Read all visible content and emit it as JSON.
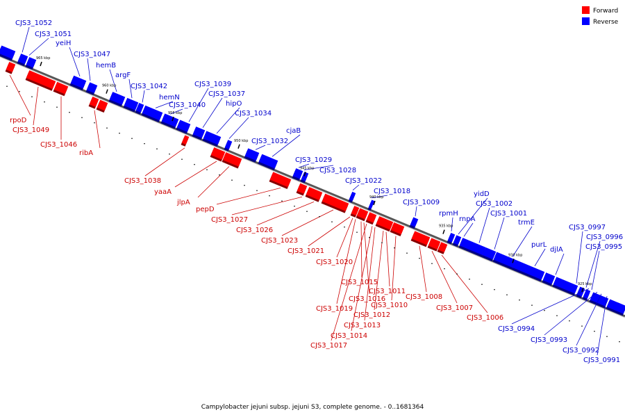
{
  "caption": "Campylobacter jejuni subsp. jejuni S3, complete genome. - 0..1681364",
  "legend": [
    {
      "label": "Forward",
      "color": "#ff0000"
    },
    {
      "label": "Reverse",
      "color": "#0000ff"
    }
  ],
  "colors": {
    "forward": "#ff0000",
    "forward_line": "#cc0000",
    "reverse": "#0000ff",
    "reverse_line": "#0000cc",
    "axis": "#888888"
  },
  "ticks": [
    "965 kbp",
    "960 kbp",
    "955 kbp",
    "950 kbp",
    "945 kbp",
    "940 kbp",
    "935 kbp",
    "930 kbp",
    "925 kbp"
  ],
  "reverse_genes": [
    "CJS3_1052",
    "CJS3_1051",
    "yeiH",
    "CJS3_1047",
    "hemB",
    "argF",
    "CJS3_1042",
    "hemN",
    "CJS3_1040",
    "CJS3_1039",
    "CJS3_1037",
    "hipO",
    "CJS3_1034",
    "cjaB",
    "CJS3_1032",
    "CJS3_1029",
    "CJS3_1028",
    "CJS3_1022",
    "CJS3_1018",
    "CJS3_1009",
    "rpmH",
    "yidD",
    "rnpA",
    "CJS3_1002",
    "CJS3_1001",
    "trmE",
    "purL",
    "djlA",
    "CJS3_0997",
    "CJS3_0996",
    "CJS3_0995",
    "CJS3_0994",
    "CJS3_0993",
    "CJS3_0992",
    "CJS3_0991"
  ],
  "forward_genes": [
    "rpoD",
    "CJS3_1049",
    "CJS3_1046",
    "ribA",
    "CJS3_1038",
    "yaaA",
    "jlpA",
    "pepD",
    "CJS3_1027",
    "CJS3_1026",
    "CJS3_1023",
    "CJS3_1021",
    "CJS3_1020",
    "CJS3_1015",
    "CJS3_1016",
    "CJS3_1019",
    "CJS3_1011",
    "CJS3_1010",
    "CJS3_1012",
    "CJS3_1013",
    "CJS3_1014",
    "CJS3_1017",
    "CJS3_1008",
    "CJS3_1007",
    "CJS3_1006"
  ]
}
